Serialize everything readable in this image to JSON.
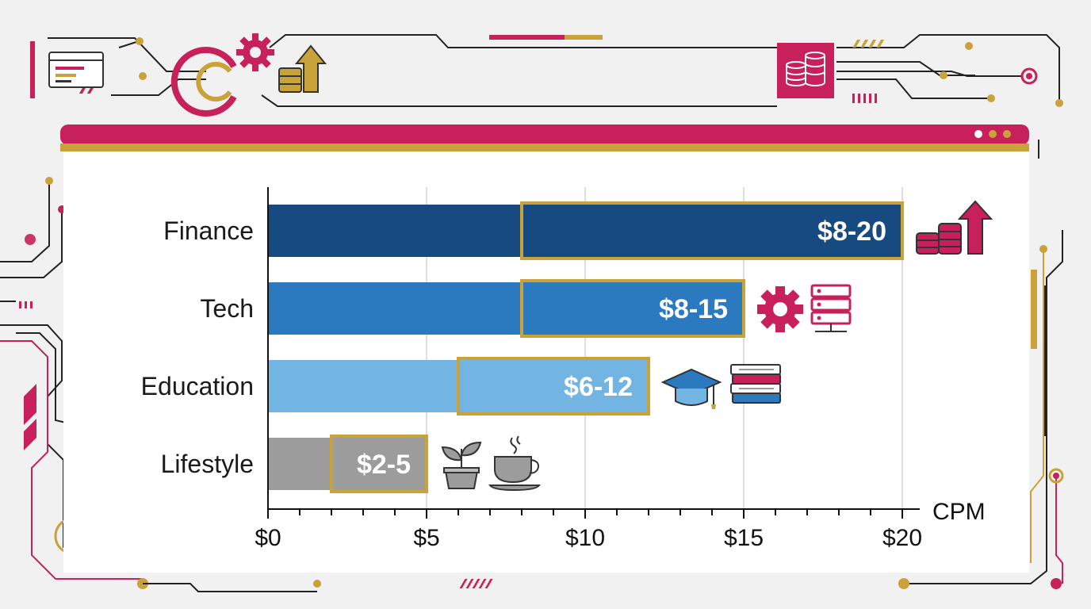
{
  "colors": {
    "crimson": "#c8205a",
    "gold": "#c9a23a",
    "finance": "#174a80",
    "tech": "#2b79be",
    "education": "#72b4e2",
    "lifestyle": "#9c9c9c",
    "background": "#f1f1f1",
    "panel": "#ffffff"
  },
  "icons": {
    "finance": [
      "coin-stack-icon",
      "arrow-up-icon"
    ],
    "tech": [
      "gear-icon",
      "server-icon"
    ],
    "education": [
      "graduation-cap-icon",
      "books-icon"
    ],
    "lifestyle": [
      "plant-icon",
      "coffee-cup-icon"
    ],
    "header": [
      "browser-window-icon",
      "gear-icon",
      "coin-stack-icon",
      "arrow-up-icon",
      "database-icon"
    ]
  },
  "chart_data": {
    "type": "bar",
    "orientation": "horizontal",
    "categories": [
      "Finance",
      "Tech",
      "Education",
      "Lifestyle"
    ],
    "series": [
      {
        "values": [
          20,
          15,
          12,
          5
        ]
      }
    ],
    "ranges": [
      {
        "category": "Finance",
        "low": 8,
        "high": 20,
        "label": "$8-20"
      },
      {
        "category": "Tech",
        "low": 8,
        "high": 15,
        "label": "$8-15"
      },
      {
        "category": "Education",
        "low": 6,
        "high": 12,
        "label": "$6-12"
      },
      {
        "category": "Lifestyle",
        "low": 2,
        "high": 5,
        "label": "$2-5"
      }
    ],
    "xlim": [
      0,
      20
    ],
    "xticks": [
      0,
      5,
      10,
      15,
      20
    ],
    "xtick_labels": [
      "$0",
      "$5",
      "$10",
      "$15",
      "$20"
    ],
    "xlabel": "CPM",
    "ylabel": "",
    "title": "",
    "grid": "vertical",
    "legend": "none"
  }
}
